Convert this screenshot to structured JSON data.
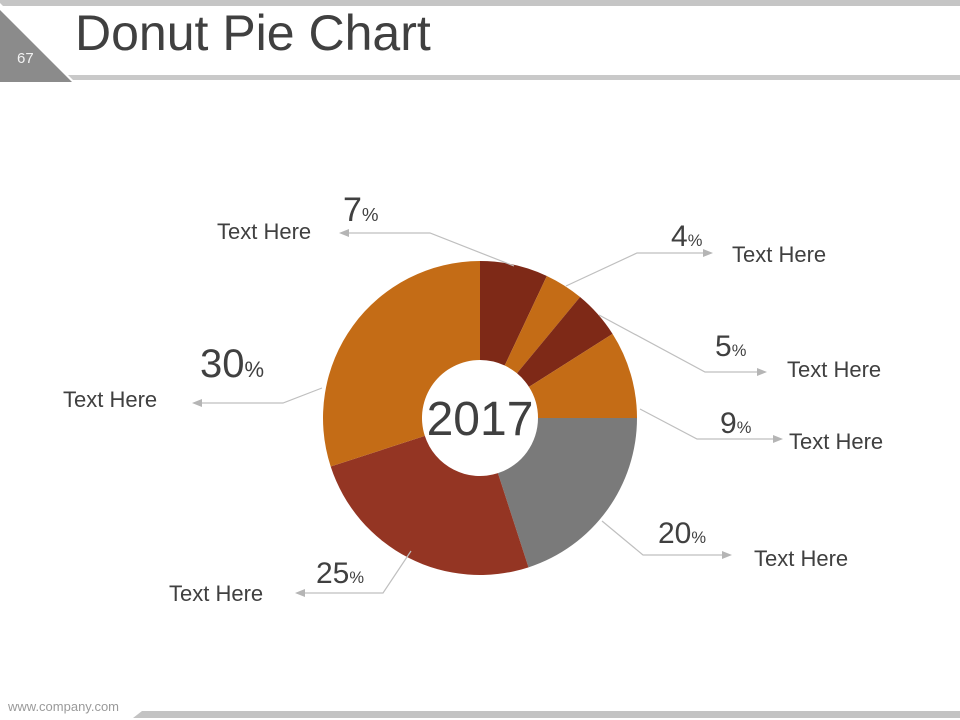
{
  "slide": {
    "page_number": "67",
    "title": "Donut Pie Chart",
    "footer": "www.company.com"
  },
  "chart_data": {
    "type": "pie",
    "subtype": "donut",
    "title": "Donut Pie Chart",
    "center_label": "2017",
    "start_angle_deg": 0,
    "direction": "clockwise",
    "legend_position": "callouts-around-chart",
    "colors": {
      "dark_maroon": "#7E2917",
      "orange": "#C46C16",
      "gray": "#7A7A7A",
      "brick_red": "#943523",
      "leader_line": "#BFBFBF",
      "text": "#404040"
    },
    "segments": [
      {
        "label": "Text Here",
        "value": 7,
        "unit": "%",
        "color": "#7E2917"
      },
      {
        "label": "Text Here",
        "value": 4,
        "unit": "%",
        "color": "#C46C16"
      },
      {
        "label": "Text Here",
        "value": 5,
        "unit": "%",
        "color": "#7E2917"
      },
      {
        "label": "Text Here",
        "value": 9,
        "unit": "%",
        "color": "#C46C16"
      },
      {
        "label": "Text Here",
        "value": 20,
        "unit": "%",
        "color": "#7A7A7A"
      },
      {
        "label": "Text Here",
        "value": 25,
        "unit": "%",
        "color": "#943523"
      },
      {
        "label": "Text Here",
        "value": 30,
        "unit": "%",
        "color": "#C46C16"
      }
    ]
  }
}
